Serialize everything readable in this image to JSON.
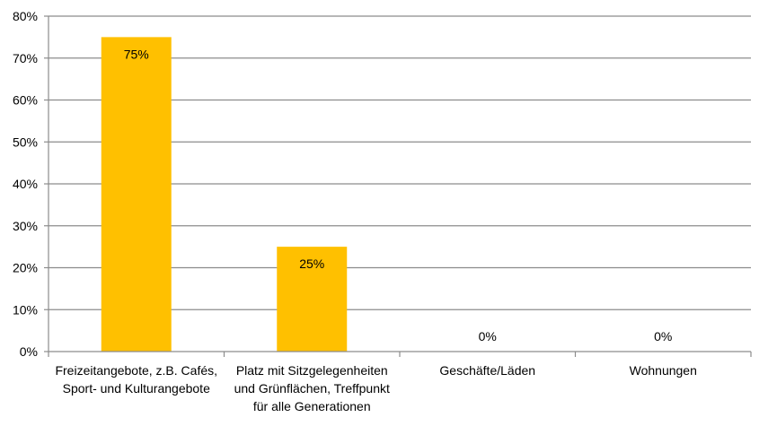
{
  "chart_data": {
    "type": "bar",
    "categories": [
      [
        "Freizeitangebote, z.B. Cafés,",
        "Sport- und Kulturangebote"
      ],
      [
        "Platz mit Sitzgelegenheiten",
        "und Grünflächen, Treffpunkt",
        "für alle Generationen"
      ],
      [
        "Geschäfte/Läden"
      ],
      [
        "Wohnungen"
      ]
    ],
    "values": [
      75,
      25,
      0,
      0
    ],
    "data_labels": [
      "75%",
      "25%",
      "0%",
      "0%"
    ],
    "y_ticks": [
      "0%",
      "10%",
      "20%",
      "30%",
      "40%",
      "50%",
      "60%",
      "70%",
      "80%"
    ],
    "ylim": [
      0,
      80
    ],
    "grid": true,
    "legend": "none",
    "bar_color": "#FFC000",
    "grid_color": "#8C8C8C",
    "title": "",
    "xlabel": "",
    "ylabel": ""
  }
}
